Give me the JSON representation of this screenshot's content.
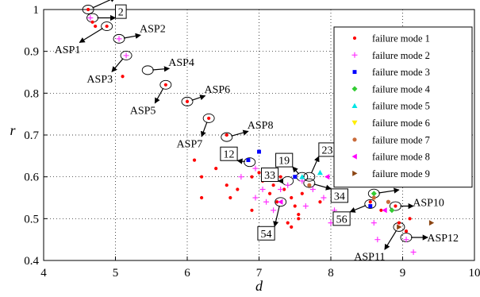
{
  "chart_data": {
    "type": "scatter",
    "title": "",
    "xlabel": "d",
    "ylabel": "r",
    "xlim": [
      4,
      10
    ],
    "ylim": [
      0.4,
      1.0
    ],
    "x_ticks": [
      "4",
      "5",
      "6",
      "7",
      "8",
      "9",
      "10"
    ],
    "y_ticks": [
      "0.4",
      "0.5",
      "0.6",
      "0.7",
      "0.8",
      "0.9",
      "1"
    ],
    "grid": "dotted",
    "legend_position": "top-right",
    "series": [
      {
        "name": "failure mode 1",
        "color": "#ff0000",
        "marker": "dot",
        "points": [
          [
            4.62,
            1.0
          ],
          [
            4.68,
            0.97
          ],
          [
            4.72,
            0.96
          ],
          [
            4.88,
            0.96
          ],
          [
            5.1,
            0.84
          ],
          [
            5.7,
            0.82
          ],
          [
            6.0,
            0.78
          ],
          [
            6.3,
            0.74
          ],
          [
            6.55,
            0.7
          ],
          [
            6.1,
            0.64
          ],
          [
            6.4,
            0.62
          ],
          [
            6.2,
            0.6
          ],
          [
            6.55,
            0.58
          ],
          [
            6.7,
            0.57
          ],
          [
            6.6,
            0.55
          ],
          [
            6.9,
            0.6
          ],
          [
            7.0,
            0.61
          ],
          [
            7.05,
            0.59
          ],
          [
            7.15,
            0.56
          ],
          [
            7.2,
            0.58
          ],
          [
            7.25,
            0.54
          ],
          [
            7.3,
            0.6
          ],
          [
            7.35,
            0.57
          ],
          [
            7.45,
            0.55
          ],
          [
            7.5,
            0.53
          ],
          [
            7.55,
            0.51
          ],
          [
            7.4,
            0.49
          ],
          [
            7.45,
            0.48
          ],
          [
            7.6,
            0.56
          ],
          [
            7.7,
            0.58
          ],
          [
            6.2,
            0.55
          ],
          [
            6.9,
            0.52
          ],
          [
            7.55,
            0.5
          ],
          [
            7.85,
            0.54
          ],
          [
            8.1,
            0.55
          ],
          [
            8.55,
            0.54
          ],
          [
            8.7,
            0.52
          ],
          [
            8.9,
            0.53
          ],
          [
            8.95,
            0.49
          ],
          [
            9.1,
            0.5
          ],
          [
            9.05,
            0.47
          ]
        ]
      },
      {
        "name": "failure mode 2",
        "color": "#ff33ff",
        "marker": "plus",
        "points": [
          [
            4.65,
            0.98
          ],
          [
            5.05,
            0.93
          ],
          [
            5.15,
            0.89
          ],
          [
            6.95,
            0.62
          ],
          [
            7.05,
            0.57
          ],
          [
            7.3,
            0.57
          ],
          [
            7.4,
            0.58
          ],
          [
            7.6,
            0.59
          ],
          [
            7.75,
            0.57
          ],
          [
            7.9,
            0.55
          ],
          [
            8.05,
            0.52
          ],
          [
            8.2,
            0.5
          ],
          [
            8.0,
            0.49
          ],
          [
            7.2,
            0.52
          ],
          [
            6.95,
            0.55
          ],
          [
            7.1,
            0.54
          ],
          [
            7.65,
            0.53
          ],
          [
            8.6,
            0.49
          ],
          [
            8.65,
            0.45
          ],
          [
            9.05,
            0.45
          ],
          [
            9.15,
            0.42
          ],
          [
            6.75,
            0.6
          ]
        ]
      },
      {
        "name": "failure mode 3",
        "color": "#0000ff",
        "marker": "square",
        "points": [
          [
            6.85,
            0.64
          ],
          [
            7.0,
            0.66
          ],
          [
            7.5,
            0.6
          ],
          [
            8.55,
            0.53
          ]
        ]
      },
      {
        "name": "failure mode 4",
        "color": "#33cc33",
        "marker": "diamond",
        "points": [
          [
            8.6,
            0.56
          ],
          [
            8.85,
            0.52
          ]
        ]
      },
      {
        "name": "failure mode 5",
        "color": "#00e5e5",
        "marker": "triangle-up",
        "points": [
          [
            7.6,
            0.6
          ],
          [
            7.85,
            0.61
          ]
        ]
      },
      {
        "name": "failure mode 6",
        "color": "#ffee00",
        "marker": "triangle-down",
        "points": [
          [
            8.3,
            0.59
          ]
        ]
      },
      {
        "name": "failure mode 7",
        "color": "#c96b3a",
        "marker": "circle",
        "points": [
          [
            7.7,
            0.58
          ],
          [
            8.6,
            0.55
          ],
          [
            8.8,
            0.54
          ]
        ]
      },
      {
        "name": "failure mode 8",
        "color": "#ff00ff",
        "marker": "triangle-left",
        "points": [
          [
            7.3,
            0.54
          ],
          [
            7.95,
            0.6
          ],
          [
            8.75,
            0.52
          ]
        ]
      },
      {
        "name": "failure mode 9",
        "color": "#8b4513",
        "marker": "triangle-right",
        "points": [
          [
            8.15,
            0.55
          ],
          [
            9.4,
            0.49
          ],
          [
            8.95,
            0.48
          ]
        ]
      }
    ],
    "annotations": [
      {
        "text": "1",
        "boxed": true,
        "point": [
          4.62,
          1.0
        ],
        "label_at": [
          5.0,
          1.045
        ],
        "label_side": "right"
      },
      {
        "text": "2",
        "boxed": true,
        "point": [
          4.68,
          0.98
        ],
        "label_at": [
          5.0,
          0.995
        ],
        "label_side": "right"
      },
      {
        "text": "ASP2",
        "boxed": false,
        "point": [
          5.05,
          0.93
        ],
        "label_at": [
          5.35,
          0.955
        ],
        "label_side": "right"
      },
      {
        "text": "ASP1",
        "boxed": false,
        "point": [
          4.88,
          0.96
        ],
        "label_at": [
          4.5,
          0.905
        ],
        "label_side": "left"
      },
      {
        "text": "ASP3",
        "boxed": false,
        "point": [
          5.15,
          0.89
        ],
        "label_at": [
          4.95,
          0.835
        ],
        "label_side": "left"
      },
      {
        "text": "ASP4",
        "boxed": false,
        "point": [
          5.45,
          0.855
        ],
        "label_at": [
          5.75,
          0.875
        ],
        "label_side": "right"
      },
      {
        "text": "ASP5",
        "boxed": false,
        "point": [
          5.7,
          0.82
        ],
        "label_at": [
          5.55,
          0.76
        ],
        "label_side": "left"
      },
      {
        "text": "ASP6",
        "boxed": false,
        "point": [
          6.0,
          0.78
        ],
        "label_at": [
          6.25,
          0.81
        ],
        "label_side": "right"
      },
      {
        "text": "ASP7",
        "boxed": false,
        "point": [
          6.3,
          0.74
        ],
        "label_at": [
          6.2,
          0.68
        ],
        "label_side": "left"
      },
      {
        "text": "ASP8",
        "boxed": false,
        "point": [
          6.55,
          0.695
        ],
        "label_at": [
          6.85,
          0.725
        ],
        "label_side": "right"
      },
      {
        "text": "12",
        "boxed": true,
        "point": [
          6.87,
          0.635
        ],
        "label_at": [
          6.58,
          0.655
        ],
        "label_side": "center"
      },
      {
        "text": "19",
        "boxed": true,
        "point": [
          7.6,
          0.6
        ],
        "label_at": [
          7.35,
          0.64
        ],
        "label_side": "center"
      },
      {
        "text": "23",
        "boxed": true,
        "point": [
          7.7,
          0.6
        ],
        "label_at": [
          7.95,
          0.665
        ],
        "label_side": "center"
      },
      {
        "text": "33",
        "boxed": true,
        "point": [
          7.4,
          0.59
        ],
        "label_at": [
          7.15,
          0.605
        ],
        "label_side": "center"
      },
      {
        "text": "34",
        "boxed": true,
        "point": [
          7.7,
          0.585
        ],
        "label_at": [
          8.12,
          0.555
        ],
        "label_side": "center"
      },
      {
        "text": "54",
        "boxed": true,
        "point": [
          7.3,
          0.54
        ],
        "label_at": [
          7.1,
          0.465
        ],
        "label_side": "center"
      },
      {
        "text": "56",
        "boxed": true,
        "point": [
          8.55,
          0.535
        ],
        "label_at": [
          8.15,
          0.5
        ],
        "label_side": "center"
      },
      {
        "text": "ASP9",
        "boxed": false,
        "point": [
          8.6,
          0.56
        ],
        "label_at": [
          8.95,
          0.585
        ],
        "label_side": "right"
      },
      {
        "text": "ASP10",
        "boxed": false,
        "point": [
          8.9,
          0.53
        ],
        "label_at": [
          9.15,
          0.54
        ],
        "label_side": "right"
      },
      {
        "text": "ASP11",
        "boxed": false,
        "point": [
          8.95,
          0.48
        ],
        "label_at": [
          8.75,
          0.41
        ],
        "label_side": "left"
      },
      {
        "text": "ASP12",
        "boxed": false,
        "point": [
          9.05,
          0.455
        ],
        "label_at": [
          9.35,
          0.455
        ],
        "label_side": "right"
      }
    ]
  }
}
